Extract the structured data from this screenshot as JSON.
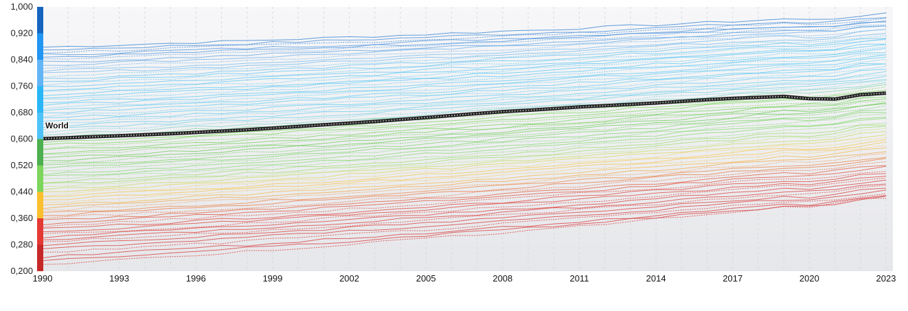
{
  "chart_data": {
    "type": "line",
    "x": [
      1990,
      1991,
      1992,
      1993,
      1994,
      1995,
      1996,
      1997,
      1998,
      1999,
      2000,
      2001,
      2002,
      2003,
      2004,
      2005,
      2006,
      2007,
      2008,
      2009,
      2010,
      2011,
      2012,
      2013,
      2014,
      2015,
      2016,
      2017,
      2018,
      2019,
      2020,
      2021,
      2022,
      2023
    ],
    "x_ticks": [
      "1990",
      "1993",
      "1996",
      "1999",
      "2002",
      "2005",
      "2008",
      "2011",
      "2014",
      "2017",
      "2020",
      "2023"
    ],
    "y_ticks": [
      "0,200",
      "0,280",
      "0,360",
      "0,440",
      "0,520",
      "0,600",
      "0,680",
      "0,760",
      "0,840",
      "0,920",
      "1,000"
    ],
    "ylim": [
      0.2,
      1.0
    ],
    "xlim": [
      1990,
      2023
    ],
    "grid": "vertical dashed",
    "color_scale": [
      {
        "from": 0.2,
        "to": 0.28,
        "color": "#c62828"
      },
      {
        "from": 0.28,
        "to": 0.36,
        "color": "#e53935"
      },
      {
        "from": 0.36,
        "to": 0.44,
        "color": "#fbc02d"
      },
      {
        "from": 0.44,
        "to": 0.52,
        "color": "#7cd65b"
      },
      {
        "from": 0.52,
        "to": 0.6,
        "color": "#4caf50"
      },
      {
        "from": 0.6,
        "to": 0.68,
        "color": "#4fc3f7"
      },
      {
        "from": 0.68,
        "to": 0.76,
        "color": "#29b6f6"
      },
      {
        "from": 0.76,
        "to": 0.84,
        "color": "#64b5f6"
      },
      {
        "from": 0.84,
        "to": 0.92,
        "color": "#2196f3"
      },
      {
        "from": 0.92,
        "to": 1.0,
        "color": "#1565c0"
      }
    ],
    "series": [
      {
        "name": "World",
        "highlight": true,
        "color": "#333333",
        "values": [
          0.601,
          0.604,
          0.607,
          0.61,
          0.613,
          0.616,
          0.62,
          0.624,
          0.628,
          0.633,
          0.638,
          0.643,
          0.648,
          0.653,
          0.659,
          0.665,
          0.671,
          0.677,
          0.683,
          0.687,
          0.692,
          0.697,
          0.701,
          0.705,
          0.709,
          0.714,
          0.719,
          0.723,
          0.726,
          0.729,
          0.722,
          0.721,
          0.734,
          0.739
        ]
      },
      {
        "start": 0.878,
        "end": 0.965,
        "color": "#2a7bd0"
      },
      {
        "start": 0.87,
        "end": 0.955,
        "color": "#3a86d6"
      },
      {
        "start": 0.862,
        "end": 0.95,
        "color": "#3a86d6"
      },
      {
        "start": 0.855,
        "end": 0.944,
        "color": "#4a92dc"
      },
      {
        "start": 0.848,
        "end": 0.94,
        "color": "#4a92dc"
      },
      {
        "start": 0.84,
        "end": 0.935,
        "color": "#5aa0e2"
      },
      {
        "start": 0.832,
        "end": 0.93,
        "color": "#5aa0e2"
      },
      {
        "start": 0.824,
        "end": 0.925,
        "color": "#6aaee8"
      },
      {
        "start": 0.815,
        "end": 0.918,
        "color": "#6aaee8"
      },
      {
        "start": 0.806,
        "end": 0.912,
        "color": "#6fb8ec"
      },
      {
        "start": 0.798,
        "end": 0.905,
        "color": "#6fb8ec"
      },
      {
        "start": 0.79,
        "end": 0.898,
        "color": "#62c0ee"
      },
      {
        "start": 0.782,
        "end": 0.892,
        "color": "#62c0ee"
      },
      {
        "start": 0.774,
        "end": 0.886,
        "color": "#5cc6f2"
      },
      {
        "start": 0.766,
        "end": 0.88,
        "color": "#5cc6f2"
      },
      {
        "start": 0.758,
        "end": 0.873,
        "color": "#5cc6f2"
      },
      {
        "start": 0.75,
        "end": 0.866,
        "color": "#58c8f4"
      },
      {
        "start": 0.742,
        "end": 0.86,
        "color": "#58c8f4"
      },
      {
        "start": 0.734,
        "end": 0.853,
        "color": "#58c8f4"
      },
      {
        "start": 0.726,
        "end": 0.846,
        "color": "#58c8f4"
      },
      {
        "start": 0.718,
        "end": 0.84,
        "color": "#5bcaf4"
      },
      {
        "start": 0.71,
        "end": 0.833,
        "color": "#5bcaf4"
      },
      {
        "start": 0.702,
        "end": 0.826,
        "color": "#5bcaf4"
      },
      {
        "start": 0.694,
        "end": 0.82,
        "color": "#5bcaf4"
      },
      {
        "start": 0.686,
        "end": 0.812,
        "color": "#5fcbf2"
      },
      {
        "start": 0.678,
        "end": 0.805,
        "color": "#5fcbf2"
      },
      {
        "start": 0.67,
        "end": 0.798,
        "color": "#5fcbf2"
      },
      {
        "start": 0.662,
        "end": 0.79,
        "color": "#5fcbf2"
      },
      {
        "start": 0.654,
        "end": 0.782,
        "color": "#66cdee"
      },
      {
        "start": 0.646,
        "end": 0.775,
        "color": "#66cdee"
      },
      {
        "start": 0.638,
        "end": 0.768,
        "color": "#66cdee"
      },
      {
        "start": 0.63,
        "end": 0.762,
        "color": "#70d0e6"
      },
      {
        "start": 0.622,
        "end": 0.755,
        "color": "#70d0e6"
      },
      {
        "start": 0.614,
        "end": 0.748,
        "color": "#7fd3c9"
      },
      {
        "start": 0.606,
        "end": 0.741,
        "color": "#86d4a8"
      },
      {
        "start": 0.598,
        "end": 0.734,
        "color": "#7cd65b"
      },
      {
        "start": 0.59,
        "end": 0.727,
        "color": "#7cd65b"
      },
      {
        "start": 0.582,
        "end": 0.72,
        "color": "#7cd65b"
      },
      {
        "start": 0.574,
        "end": 0.713,
        "color": "#7cd65b"
      },
      {
        "start": 0.566,
        "end": 0.706,
        "color": "#74d05a"
      },
      {
        "start": 0.558,
        "end": 0.7,
        "color": "#74d05a"
      },
      {
        "start": 0.55,
        "end": 0.694,
        "color": "#74d05a"
      },
      {
        "start": 0.542,
        "end": 0.688,
        "color": "#6ccb55"
      },
      {
        "start": 0.534,
        "end": 0.682,
        "color": "#6ccb55"
      },
      {
        "start": 0.526,
        "end": 0.675,
        "color": "#6ccb55"
      },
      {
        "start": 0.518,
        "end": 0.668,
        "color": "#7dd46a"
      },
      {
        "start": 0.51,
        "end": 0.661,
        "color": "#7dd46a"
      },
      {
        "start": 0.502,
        "end": 0.654,
        "color": "#7dd46a"
      },
      {
        "start": 0.494,
        "end": 0.646,
        "color": "#86d86e"
      },
      {
        "start": 0.486,
        "end": 0.638,
        "color": "#86d86e"
      },
      {
        "start": 0.478,
        "end": 0.63,
        "color": "#86d86e"
      },
      {
        "start": 0.47,
        "end": 0.622,
        "color": "#9ddc6a"
      },
      {
        "start": 0.462,
        "end": 0.614,
        "color": "#9ddc6a"
      },
      {
        "start": 0.455,
        "end": 0.606,
        "color": "#b7de66"
      },
      {
        "start": 0.448,
        "end": 0.598,
        "color": "#c7dc60"
      },
      {
        "start": 0.44,
        "end": 0.59,
        "color": "#dfd658"
      },
      {
        "start": 0.432,
        "end": 0.582,
        "color": "#f2cd50"
      },
      {
        "start": 0.424,
        "end": 0.574,
        "color": "#f6c84a"
      },
      {
        "start": 0.416,
        "end": 0.566,
        "color": "#f7c349"
      },
      {
        "start": 0.408,
        "end": 0.558,
        "color": "#f7c349"
      },
      {
        "start": 0.4,
        "end": 0.549,
        "color": "#f6b845"
      },
      {
        "start": 0.392,
        "end": 0.54,
        "color": "#f2a545"
      },
      {
        "start": 0.384,
        "end": 0.532,
        "color": "#ef9545"
      },
      {
        "start": 0.376,
        "end": 0.524,
        "color": "#ec8543"
      },
      {
        "start": 0.368,
        "end": 0.516,
        "color": "#e9763f"
      },
      {
        "start": 0.36,
        "end": 0.508,
        "color": "#e6683c"
      },
      {
        "start": 0.352,
        "end": 0.5,
        "color": "#e45a3a"
      },
      {
        "start": 0.344,
        "end": 0.492,
        "color": "#e24f39"
      },
      {
        "start": 0.336,
        "end": 0.484,
        "color": "#e04638"
      },
      {
        "start": 0.328,
        "end": 0.476,
        "color": "#df4037"
      },
      {
        "start": 0.32,
        "end": 0.468,
        "color": "#df4037"
      },
      {
        "start": 0.312,
        "end": 0.46,
        "color": "#dd3b37"
      },
      {
        "start": 0.304,
        "end": 0.452,
        "color": "#dd3b37"
      },
      {
        "start": 0.296,
        "end": 0.444,
        "color": "#dc3a37"
      },
      {
        "start": 0.288,
        "end": 0.436,
        "color": "#dc3a37"
      },
      {
        "start": 0.28,
        "end": 0.428,
        "color": "#dc3a37"
      },
      {
        "start": 0.268,
        "end": 0.42,
        "color": "#d93636"
      },
      {
        "start": 0.256,
        "end": 0.412,
        "color": "#d93636"
      },
      {
        "start": 0.244,
        "end": 0.405,
        "color": "#d83434"
      },
      {
        "start": 0.232,
        "end": 0.4,
        "color": "#d83434"
      },
      {
        "start": 0.22,
        "end": 0.397,
        "color": "#d63232"
      }
    ]
  }
}
